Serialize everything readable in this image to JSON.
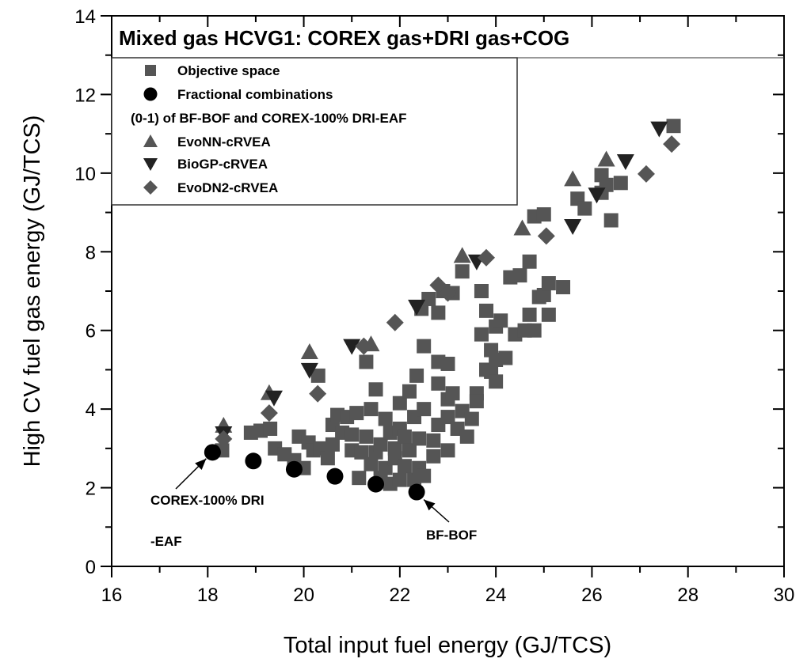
{
  "chart_data": {
    "type": "scatter",
    "title": "Mixed gas HCVG1: COREX gas+DRI gas+COG",
    "xlabel": "Total input fuel energy (GJ/TCS)",
    "ylabel": "High CV fuel gas energy (GJ/TCS)",
    "xlim": [
      16,
      30
    ],
    "ylim": [
      0,
      14
    ],
    "xticks": [
      16,
      18,
      20,
      22,
      24,
      26,
      28,
      30
    ],
    "yticks": [
      0,
      2,
      4,
      6,
      8,
      10,
      12,
      14
    ],
    "grid": false,
    "legend_position": "upper left",
    "legend": [
      "Objective space",
      "Fractional combinations",
      "(0-1) of BF-BOF and COREX-100% DRI-EAF",
      "EvoNN-cRVEA",
      "BioGP-cRVEA",
      "EvoDN2-cRVEA"
    ],
    "annotations": [
      {
        "text": "COREX-100% DRI",
        "x": 17.3,
        "y": 1.65,
        "points_to": [
          18.1,
          2.9
        ]
      },
      {
        "text": "-EAF",
        "x": 17.3,
        "y": 0.75
      },
      {
        "text": "BF-BOF",
        "x": 22.6,
        "y": 0.8,
        "points_to": [
          22.4,
          1.9
        ]
      }
    ],
    "series": [
      {
        "name": "Objective space",
        "marker": "square",
        "color": "#555555",
        "points": [
          [
            18.3,
            2.95
          ],
          [
            18.9,
            3.4
          ],
          [
            19.1,
            3.45
          ],
          [
            19.3,
            3.5
          ],
          [
            19.4,
            3.0
          ],
          [
            19.6,
            2.85
          ],
          [
            19.8,
            2.7
          ],
          [
            19.9,
            3.3
          ],
          [
            20.0,
            2.5
          ],
          [
            20.1,
            3.15
          ],
          [
            20.2,
            2.95
          ],
          [
            20.3,
            4.85
          ],
          [
            20.35,
            3.0
          ],
          [
            20.5,
            2.75
          ],
          [
            20.6,
            3.1
          ],
          [
            20.6,
            3.6
          ],
          [
            20.7,
            3.85
          ],
          [
            20.8,
            3.4
          ],
          [
            20.9,
            3.8
          ],
          [
            21.0,
            3.35
          ],
          [
            21.0,
            2.95
          ],
          [
            21.1,
            3.9
          ],
          [
            21.15,
            2.25
          ],
          [
            21.2,
            2.9
          ],
          [
            21.3,
            5.2
          ],
          [
            21.3,
            3.3
          ],
          [
            21.4,
            2.6
          ],
          [
            21.4,
            4.0
          ],
          [
            21.5,
            4.5
          ],
          [
            21.5,
            2.9
          ],
          [
            21.6,
            3.1
          ],
          [
            21.6,
            2.25
          ],
          [
            21.7,
            3.75
          ],
          [
            21.7,
            2.5
          ],
          [
            21.8,
            3.4
          ],
          [
            21.8,
            2.1
          ],
          [
            21.9,
            2.75
          ],
          [
            21.9,
            3.0
          ],
          [
            22.0,
            3.5
          ],
          [
            22.0,
            2.2
          ],
          [
            22.0,
            4.15
          ],
          [
            22.1,
            3.3
          ],
          [
            22.1,
            2.55
          ],
          [
            22.2,
            4.45
          ],
          [
            22.2,
            2.95
          ],
          [
            22.3,
            3.8
          ],
          [
            22.3,
            2.2
          ],
          [
            22.35,
            4.85
          ],
          [
            22.4,
            3.25
          ],
          [
            22.4,
            2.5
          ],
          [
            22.45,
            6.55
          ],
          [
            22.5,
            5.6
          ],
          [
            22.5,
            2.3
          ],
          [
            22.5,
            4.0
          ],
          [
            22.6,
            6.8
          ],
          [
            22.7,
            3.2
          ],
          [
            22.7,
            2.8
          ],
          [
            22.8,
            4.65
          ],
          [
            22.8,
            3.6
          ],
          [
            22.8,
            6.45
          ],
          [
            22.8,
            5.2
          ],
          [
            22.9,
            7.0
          ],
          [
            23.0,
            4.25
          ],
          [
            23.0,
            3.8
          ],
          [
            23.0,
            5.15
          ],
          [
            23.0,
            2.95
          ],
          [
            23.1,
            6.95
          ],
          [
            23.1,
            4.4
          ],
          [
            23.2,
            3.5
          ],
          [
            23.3,
            7.5
          ],
          [
            23.3,
            3.95
          ],
          [
            23.4,
            3.3
          ],
          [
            23.5,
            3.75
          ],
          [
            23.6,
            4.4
          ],
          [
            23.6,
            4.2
          ],
          [
            23.7,
            5.9
          ],
          [
            23.7,
            7.0
          ],
          [
            23.8,
            6.5
          ],
          [
            23.8,
            5.0
          ],
          [
            23.9,
            5.5
          ],
          [
            23.9,
            4.95
          ],
          [
            24.0,
            6.1
          ],
          [
            24.0,
            4.7
          ],
          [
            24.0,
            5.25
          ],
          [
            24.1,
            6.25
          ],
          [
            24.2,
            5.3
          ],
          [
            24.3,
            7.35
          ],
          [
            24.4,
            5.9
          ],
          [
            24.5,
            7.4
          ],
          [
            24.6,
            6.0
          ],
          [
            24.7,
            7.75
          ],
          [
            24.7,
            6.4
          ],
          [
            24.8,
            8.9
          ],
          [
            24.8,
            6.0
          ],
          [
            24.9,
            6.85
          ],
          [
            25.0,
            6.9
          ],
          [
            25.0,
            8.95
          ],
          [
            25.1,
            7.2
          ],
          [
            25.1,
            6.4
          ],
          [
            25.4,
            7.1
          ],
          [
            25.7,
            9.35
          ],
          [
            25.85,
            9.1
          ],
          [
            26.2,
            9.95
          ],
          [
            26.2,
            9.5
          ],
          [
            26.3,
            9.7
          ],
          [
            26.4,
            8.8
          ],
          [
            26.6,
            9.75
          ],
          [
            27.7,
            11.2
          ]
        ]
      },
      {
        "name": "Fractional combinations (0-1) of BF-BOF and COREX-100% DRI-EAF",
        "marker": "circle",
        "color": "#000000",
        "points": [
          [
            18.1,
            2.9
          ],
          [
            18.95,
            2.68
          ],
          [
            19.8,
            2.47
          ],
          [
            20.65,
            2.29
          ],
          [
            21.5,
            2.09
          ],
          [
            22.35,
            1.89
          ]
        ]
      },
      {
        "name": "EvoNN-cRVEA",
        "marker": "triangle-up",
        "color": "#555555",
        "points": [
          [
            18.33,
            3.58
          ],
          [
            19.28,
            4.41
          ],
          [
            20.12,
            5.45
          ],
          [
            21.4,
            5.65
          ],
          [
            23.3,
            7.9
          ],
          [
            24.55,
            8.6
          ],
          [
            25.6,
            9.85
          ],
          [
            26.3,
            10.35
          ]
        ]
      },
      {
        "name": "BioGP-cRVEA",
        "marker": "triangle-down",
        "color": "#222222",
        "points": [
          [
            18.33,
            3.38
          ],
          [
            19.38,
            4.29
          ],
          [
            20.12,
            4.99
          ],
          [
            21.0,
            5.6
          ],
          [
            22.35,
            6.6
          ],
          [
            23.6,
            7.75
          ],
          [
            25.6,
            8.65
          ],
          [
            26.1,
            9.45
          ],
          [
            26.7,
            10.3
          ],
          [
            27.4,
            11.13
          ]
        ]
      },
      {
        "name": "EvoDN2-cRVEA",
        "marker": "diamond",
        "color": "#555555",
        "points": [
          [
            18.33,
            3.24
          ],
          [
            19.28,
            3.9
          ],
          [
            20.29,
            4.39
          ],
          [
            21.25,
            5.6
          ],
          [
            21.9,
            6.2
          ],
          [
            22.8,
            7.15
          ],
          [
            23.0,
            6.95
          ],
          [
            23.8,
            7.85
          ],
          [
            25.05,
            8.4
          ],
          [
            27.13,
            9.98
          ],
          [
            27.66,
            10.74
          ]
        ]
      }
    ]
  }
}
